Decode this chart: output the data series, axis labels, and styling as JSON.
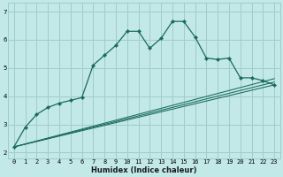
{
  "xlabel": "Humidex (Indice chaleur)",
  "bg_color": "#c2e8e8",
  "grid_color": "#a0cccc",
  "line_color": "#1a6b5a",
  "xlim": [
    -0.5,
    23.5
  ],
  "ylim": [
    1.8,
    7.3
  ],
  "yticks": [
    2,
    3,
    4,
    5,
    6,
    7
  ],
  "xticks": [
    0,
    1,
    2,
    3,
    4,
    5,
    6,
    7,
    8,
    9,
    10,
    11,
    12,
    13,
    14,
    15,
    16,
    17,
    18,
    19,
    20,
    21,
    22,
    23
  ],
  "series_main": {
    "x": [
      0,
      1,
      2,
      3,
      4,
      5,
      6,
      7,
      8,
      9,
      10,
      11,
      12,
      13,
      14,
      15,
      16,
      17,
      18,
      19,
      20,
      21,
      22,
      23
    ],
    "y": [
      2.2,
      2.9,
      3.35,
      3.6,
      3.75,
      3.85,
      3.95,
      5.1,
      5.45,
      5.8,
      6.3,
      6.3,
      5.7,
      6.05,
      6.65,
      6.65,
      6.1,
      5.35,
      5.3,
      5.35,
      4.65,
      4.65,
      4.55,
      4.4
    ]
  },
  "series_linear": [
    {
      "x": [
        0,
        23
      ],
      "y": [
        2.2,
        4.4
      ]
    },
    {
      "x": [
        0,
        23
      ],
      "y": [
        2.2,
        4.5
      ]
    },
    {
      "x": [
        0,
        23
      ],
      "y": [
        2.2,
        4.62
      ]
    }
  ],
  "tick_fontsize": 5.0,
  "xlabel_fontsize": 6.0
}
